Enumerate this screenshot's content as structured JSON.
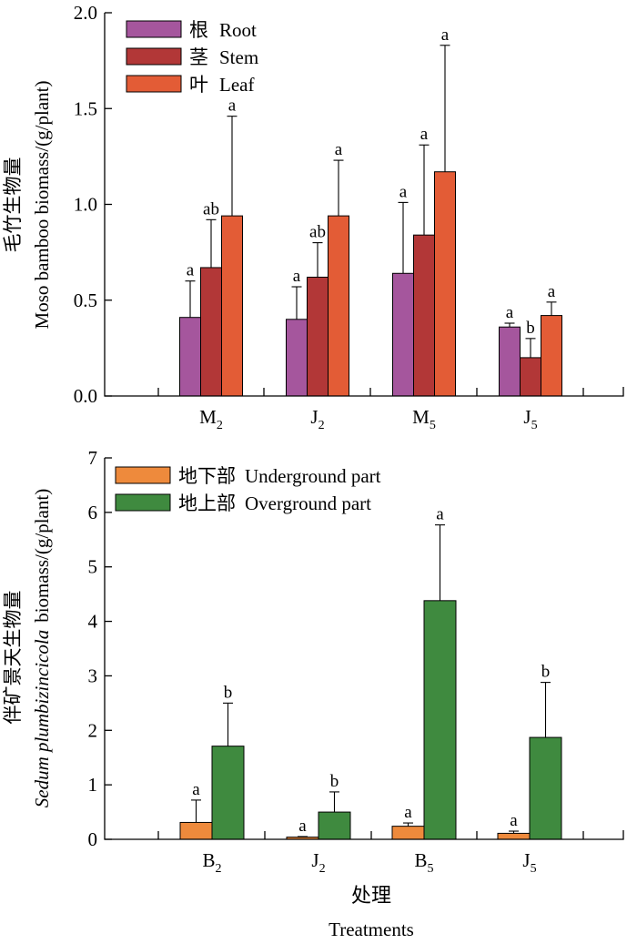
{
  "chart_data": [
    {
      "type": "bar",
      "title": "",
      "ylabel_cn": "毛竹生物量",
      "ylabel_en": "Moso bamboo biomass/(g/plant)",
      "xlabel": "",
      "ylim": [
        0,
        2.0
      ],
      "yticks": [
        "0.0",
        "0.5",
        "1.0",
        "1.5",
        "2.0"
      ],
      "categories": [
        {
          "main": "M",
          "sub": "2"
        },
        {
          "main": "J",
          "sub": "2"
        },
        {
          "main": "M",
          "sub": "5"
        },
        {
          "main": "J",
          "sub": "5"
        }
      ],
      "series": [
        {
          "name_cn": "根",
          "name_en": "Root",
          "color": "#a5569d",
          "values": [
            0.41,
            0.4,
            0.64,
            0.36
          ],
          "errors": [
            0.19,
            0.17,
            0.37,
            0.02
          ],
          "letters": [
            "a",
            "a",
            "a",
            "a"
          ]
        },
        {
          "name_cn": "茎",
          "name_en": "Stem",
          "color": "#b23737",
          "values": [
            0.67,
            0.62,
            0.84,
            0.2
          ],
          "errors": [
            0.25,
            0.18,
            0.47,
            0.1
          ],
          "letters": [
            "ab",
            "ab",
            "a",
            "b"
          ]
        },
        {
          "name_cn": "叶",
          "name_en": "Leaf",
          "color": "#e35c36",
          "values": [
            0.94,
            0.94,
            1.17,
            0.42
          ],
          "errors": [
            0.52,
            0.29,
            0.66,
            0.07
          ],
          "letters": [
            "a",
            "a",
            "a",
            "a"
          ]
        }
      ]
    },
    {
      "type": "bar",
      "title": "",
      "ylabel_cn": "伴矿景天生物量",
      "ylabel_en_italic": "Sedum plumbizincicola",
      "ylabel_en_rest": "biomass/(g/plant)",
      "xlabel_cn": "处理",
      "xlabel_en": "Treatments",
      "ylim": [
        0,
        7
      ],
      "yticks": [
        "0",
        "1",
        "2",
        "3",
        "4",
        "5",
        "6",
        "7"
      ],
      "categories": [
        {
          "main": "B",
          "sub": "2"
        },
        {
          "main": "J",
          "sub": "2"
        },
        {
          "main": "B",
          "sub": "5"
        },
        {
          "main": "J",
          "sub": "5"
        }
      ],
      "series": [
        {
          "name_cn": "地下部",
          "name_en": "Underground part",
          "color": "#ee8a3c",
          "values": [
            0.31,
            0.04,
            0.24,
            0.11
          ],
          "errors": [
            0.41,
            0.01,
            0.06,
            0.04
          ],
          "letters": [
            "a",
            "a",
            "a",
            "a"
          ]
        },
        {
          "name_cn": "地上部",
          "name_en": "Overground part",
          "color": "#3f8a3f",
          "values": [
            1.71,
            0.5,
            4.38,
            1.87
          ],
          "errors": [
            0.79,
            0.37,
            1.39,
            1.01
          ],
          "letters": [
            "b",
            "b",
            "a",
            "b"
          ]
        }
      ]
    }
  ]
}
